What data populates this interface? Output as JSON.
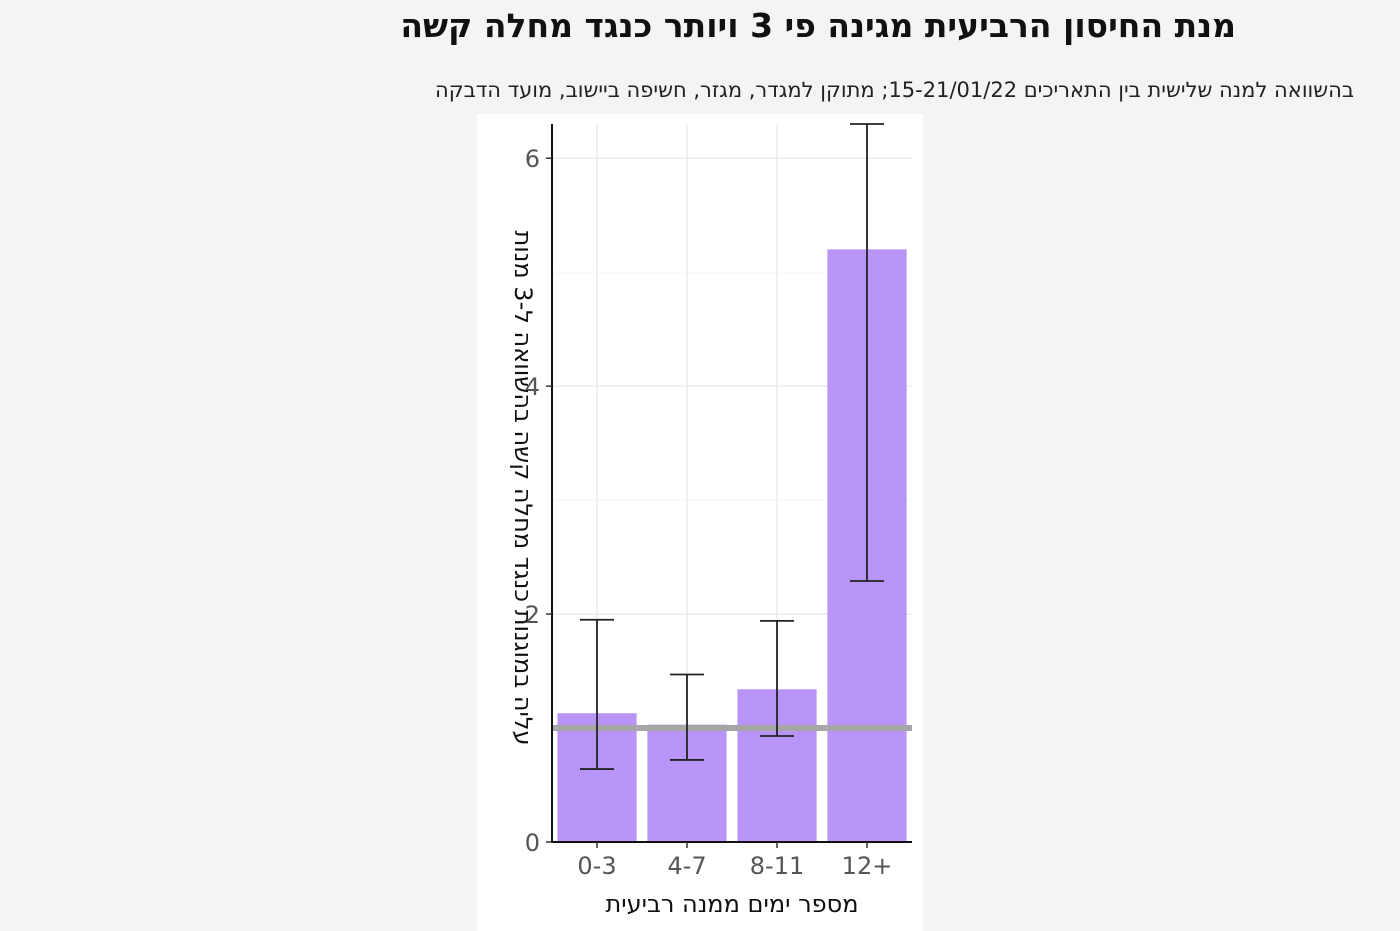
{
  "title": "מנת החיסון הרביעית מגינה פי 3 ויותר כנגד מחלה קשה",
  "subtitle": "בהשוואה למנה שלישית בין התאריכים 15-21/01/22; מתוקן למגדר, מגזר, חשיפה ביישוב, מועד הדבקה",
  "chart_data": {
    "type": "bar",
    "categories": [
      "0-3",
      "4-7",
      "8-11",
      "12+"
    ],
    "values": [
      1.13,
      1.03,
      1.34,
      5.2
    ],
    "error_low": [
      0.64,
      0.72,
      0.93,
      2.29
    ],
    "error_high": [
      1.95,
      1.47,
      1.94,
      6.3
    ],
    "reference_line": 1,
    "xlabel": "מספר ימים ממנה רביעית",
    "ylabel": "עליה במוגנות כנגד מחלה קשה בהשוואה ל-3 מנות",
    "ylim": [
      0,
      6.3
    ],
    "yticks": [
      0,
      2,
      4,
      6
    ],
    "bar_color": "#b794f6",
    "reference_line_color": "#a6a6a6",
    "grid": true
  }
}
